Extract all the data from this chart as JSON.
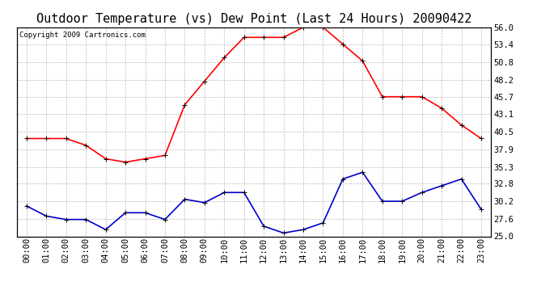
{
  "title": "Outdoor Temperature (vs) Dew Point (Last 24 Hours) 20090422",
  "copyright": "Copyright 2009 Cartronics.com",
  "hours": [
    "00:00",
    "01:00",
    "02:00",
    "03:00",
    "04:00",
    "05:00",
    "06:00",
    "07:00",
    "08:00",
    "09:00",
    "10:00",
    "11:00",
    "12:00",
    "13:00",
    "14:00",
    "15:00",
    "16:00",
    "17:00",
    "18:00",
    "19:00",
    "20:00",
    "21:00",
    "22:00",
    "23:00"
  ],
  "temp": [
    39.5,
    39.5,
    39.5,
    38.5,
    36.5,
    36.0,
    36.5,
    37.0,
    44.5,
    48.0,
    51.5,
    54.5,
    54.5,
    54.5,
    56.0,
    56.0,
    53.5,
    51.0,
    45.7,
    45.7,
    45.7,
    44.0,
    41.5,
    39.5
  ],
  "dew": [
    29.5,
    28.0,
    27.5,
    27.5,
    26.0,
    28.5,
    28.5,
    27.5,
    30.5,
    30.0,
    31.5,
    31.5,
    26.5,
    25.5,
    26.0,
    27.0,
    33.5,
    34.5,
    30.2,
    30.2,
    31.5,
    32.5,
    33.5,
    29.0
  ],
  "temp_color": "#ff0000",
  "dew_color": "#0000cc",
  "bg_color": "#ffffff",
  "plot_bg": "#ffffff",
  "grid_color": "#bbbbbb",
  "ylim": [
    25.0,
    56.0
  ],
  "yticks": [
    25.0,
    27.6,
    30.2,
    32.8,
    35.3,
    37.9,
    40.5,
    43.1,
    45.7,
    48.2,
    50.8,
    53.4,
    56.0
  ],
  "title_fontsize": 11,
  "copyright_fontsize": 6.5,
  "tick_fontsize": 7.5,
  "marker": "+",
  "markersize": 5,
  "linewidth": 1.2
}
